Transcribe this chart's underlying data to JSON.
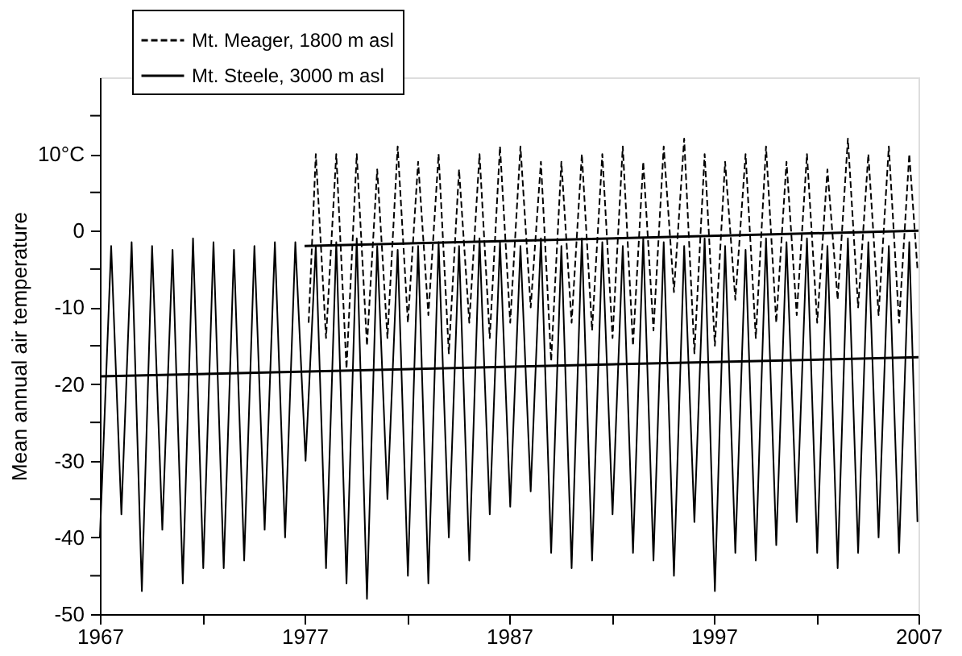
{
  "chart_data": {
    "type": "line",
    "ylabel": "Mean annual air temperature",
    "xlim": [
      1967,
      2007
    ],
    "ylim": [
      -50,
      20
    ],
    "xticks": [
      1967,
      {
        "value": 1972,
        "label": null
      },
      1977,
      {
        "value": 1982,
        "label": null
      },
      1987,
      {
        "value": 1992,
        "label": null
      },
      1997,
      {
        "value": 2002,
        "label": null
      },
      2007
    ],
    "yticks": [
      {
        "value": 15,
        "label": null
      },
      {
        "value": 10,
        "label": "10°C"
      },
      {
        "value": 5,
        "label": null
      },
      0,
      {
        "value": -5,
        "label": null
      },
      -10,
      {
        "value": -15,
        "label": null
      },
      -20,
      {
        "value": -25,
        "label": null
      },
      -30,
      {
        "value": -35,
        "label": null
      },
      -40,
      {
        "value": -45,
        "label": null
      },
      -50
    ],
    "grid": false,
    "legend": "top left",
    "marker": "none",
    "series": [
      {
        "name": "Mt. Meager, 1800 m asl",
        "color": "#000000",
        "line_style": "dashed",
        "x": [
          1977.2,
          1977.55,
          1978.05,
          1978.55,
          1979.05,
          1979.55,
          1980.05,
          1980.55,
          1981.05,
          1981.55,
          1982.05,
          1982.55,
          1983.05,
          1983.55,
          1984.05,
          1984.55,
          1985.05,
          1985.55,
          1986.05,
          1986.55,
          1987.05,
          1987.55,
          1988.05,
          1988.55,
          1989.05,
          1989.55,
          1990.05,
          1990.55,
          1991.05,
          1991.55,
          1992.05,
          1992.55,
          1993.05,
          1993.55,
          1994.05,
          1994.55,
          1995.05,
          1995.55,
          1996.05,
          1996.55,
          1997.05,
          1997.55,
          1998.05,
          1998.55,
          1999.05,
          1999.55,
          2000.05,
          2000.55,
          2001.05,
          2001.55,
          2002.05,
          2002.55,
          2003.05,
          2003.55,
          2004.05,
          2004.55,
          2005.05,
          2005.55,
          2006.05,
          2006.55,
          2006.95
        ],
        "values": [
          -12,
          10,
          -14,
          10,
          -18,
          10,
          -15,
          8,
          -14,
          11,
          -12,
          9,
          -11,
          10,
          -16,
          8,
          -12,
          10,
          -14,
          11,
          -12,
          11,
          -10,
          9,
          -17,
          9,
          -12,
          10,
          -13,
          10,
          -14,
          11,
          -15,
          9,
          -13,
          11,
          -8,
          12,
          -16,
          10,
          -15,
          9,
          -9,
          10,
          -14,
          11,
          -12,
          9,
          -11,
          10,
          -12,
          8,
          -9,
          12,
          -10,
          10,
          -11,
          11,
          -12,
          10,
          -5
        ]
      },
      {
        "name": "Mt. Steele, 3000 m asl",
        "color": "#000000",
        "line_style": "solid",
        "x": [
          1967.0,
          1967.55,
          1968.05,
          1968.55,
          1969.05,
          1969.55,
          1970.05,
          1970.55,
          1971.05,
          1971.55,
          1972.05,
          1972.55,
          1973.05,
          1973.55,
          1974.05,
          1974.55,
          1975.05,
          1975.55,
          1976.05,
          1976.55,
          1977.05,
          1977.55,
          1978.05,
          1978.55,
          1979.05,
          1979.55,
          1980.05,
          1980.55,
          1981.05,
          1981.55,
          1982.05,
          1982.55,
          1983.05,
          1983.55,
          1984.05,
          1984.55,
          1985.05,
          1985.55,
          1986.05,
          1986.55,
          1987.05,
          1987.55,
          1988.05,
          1988.55,
          1989.05,
          1989.55,
          1990.05,
          1990.55,
          1991.05,
          1991.55,
          1992.05,
          1992.55,
          1993.05,
          1993.55,
          1994.05,
          1994.55,
          1995.05,
          1995.55,
          1996.05,
          1996.55,
          1997.05,
          1997.55,
          1998.05,
          1998.55,
          1999.05,
          1999.55,
          2000.05,
          2000.55,
          2001.05,
          2001.55,
          2002.05,
          2002.55,
          2003.05,
          2003.55,
          2004.05,
          2004.55,
          2005.05,
          2005.55,
          2006.05,
          2006.55,
          2006.95
        ],
        "values": [
          -40,
          -2,
          -37,
          -1.5,
          -47,
          -2,
          -39,
          -2.5,
          -46,
          -1,
          -44,
          -1.5,
          -44,
          -2.5,
          -43,
          -2,
          -39,
          -1.5,
          -40,
          -1.5,
          -30,
          -2,
          -44,
          -1.5,
          -46,
          -1,
          -48,
          -2,
          -35,
          -2.5,
          -45,
          -2,
          -46,
          -1.5,
          -40,
          -2,
          -43,
          -1,
          -37,
          -1.5,
          -36,
          -2,
          -34,
          -1,
          -42,
          -2,
          -44,
          -1,
          -43,
          -1.5,
          -37,
          -2,
          -42,
          -1,
          -43,
          -1.5,
          -45,
          -2,
          -38,
          -1,
          -47,
          -2,
          -42,
          -2.5,
          -43,
          -1,
          -41,
          -1.5,
          -38,
          -1,
          -42,
          -2,
          -44,
          -1,
          -42,
          -1.5,
          -40,
          -2,
          -42,
          -1.5,
          -38
        ]
      },
      {
        "type": "line",
        "color": "#000000",
        "line_style": "solid",
        "x": [
          1977,
          2007
        ],
        "values": [
          -2,
          0
        ]
      },
      {
        "type": "line",
        "color": "#000000",
        "line_style": "solid",
        "x": [
          1967,
          2007
        ],
        "values": [
          -19,
          -16.5
        ]
      }
    ]
  }
}
